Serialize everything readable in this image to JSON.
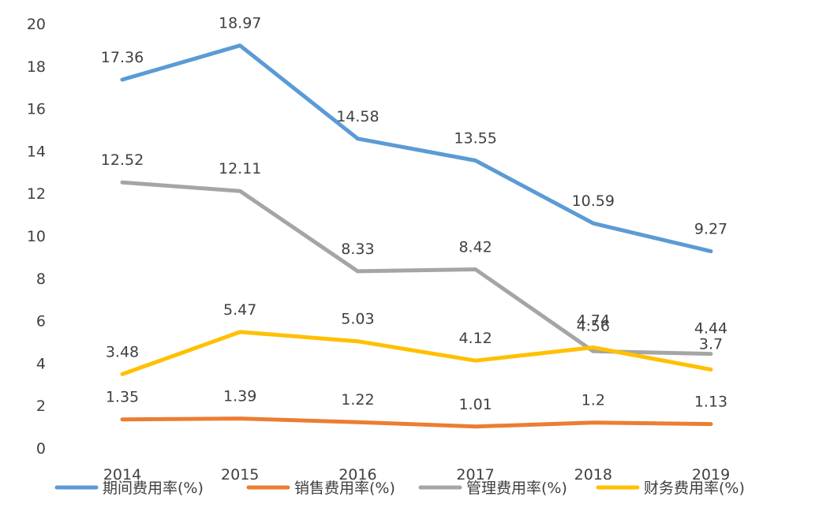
{
  "chart_data": {
    "type": "line",
    "categories": [
      "2014",
      "2015",
      "2016",
      "2017",
      "2018",
      "2019"
    ],
    "ylim": [
      0,
      20
    ],
    "yticks": [
      "0",
      "2",
      "4",
      "6",
      "8",
      "10",
      "12",
      "14",
      "16",
      "18",
      "20"
    ],
    "grid": false,
    "legend_position": "bottom",
    "series": [
      {
        "name": "期间费用率(%)",
        "color": "#5B9BD5",
        "values": [
          17.36,
          18.97,
          14.58,
          13.55,
          10.59,
          9.27
        ],
        "labels": [
          "17.36",
          "18.97",
          "14.58",
          "13.55",
          "10.59",
          "9.27"
        ]
      },
      {
        "name": "销售费用率(%)",
        "color": "#ED7D31",
        "values": [
          1.35,
          1.39,
          1.22,
          1.01,
          1.2,
          1.13
        ],
        "labels": [
          "1.35",
          "1.39",
          "1.22",
          "1.01",
          "1.2",
          "1.13"
        ]
      },
      {
        "name": "管理费用率(%)",
        "color": "#A5A5A5",
        "values": [
          12.52,
          12.11,
          8.33,
          8.42,
          4.56,
          4.44
        ],
        "labels": [
          "12.52",
          "12.11",
          "8.33",
          "8.42",
          "4.56",
          "4.44"
        ]
      },
      {
        "name": "财务费用率(%)",
        "color": "#FFC000",
        "values": [
          3.48,
          5.47,
          5.03,
          4.12,
          4.74,
          3.7
        ],
        "labels": [
          "3.48",
          "5.47",
          "5.03",
          "4.12",
          "4.74",
          "3.7"
        ]
      }
    ]
  }
}
